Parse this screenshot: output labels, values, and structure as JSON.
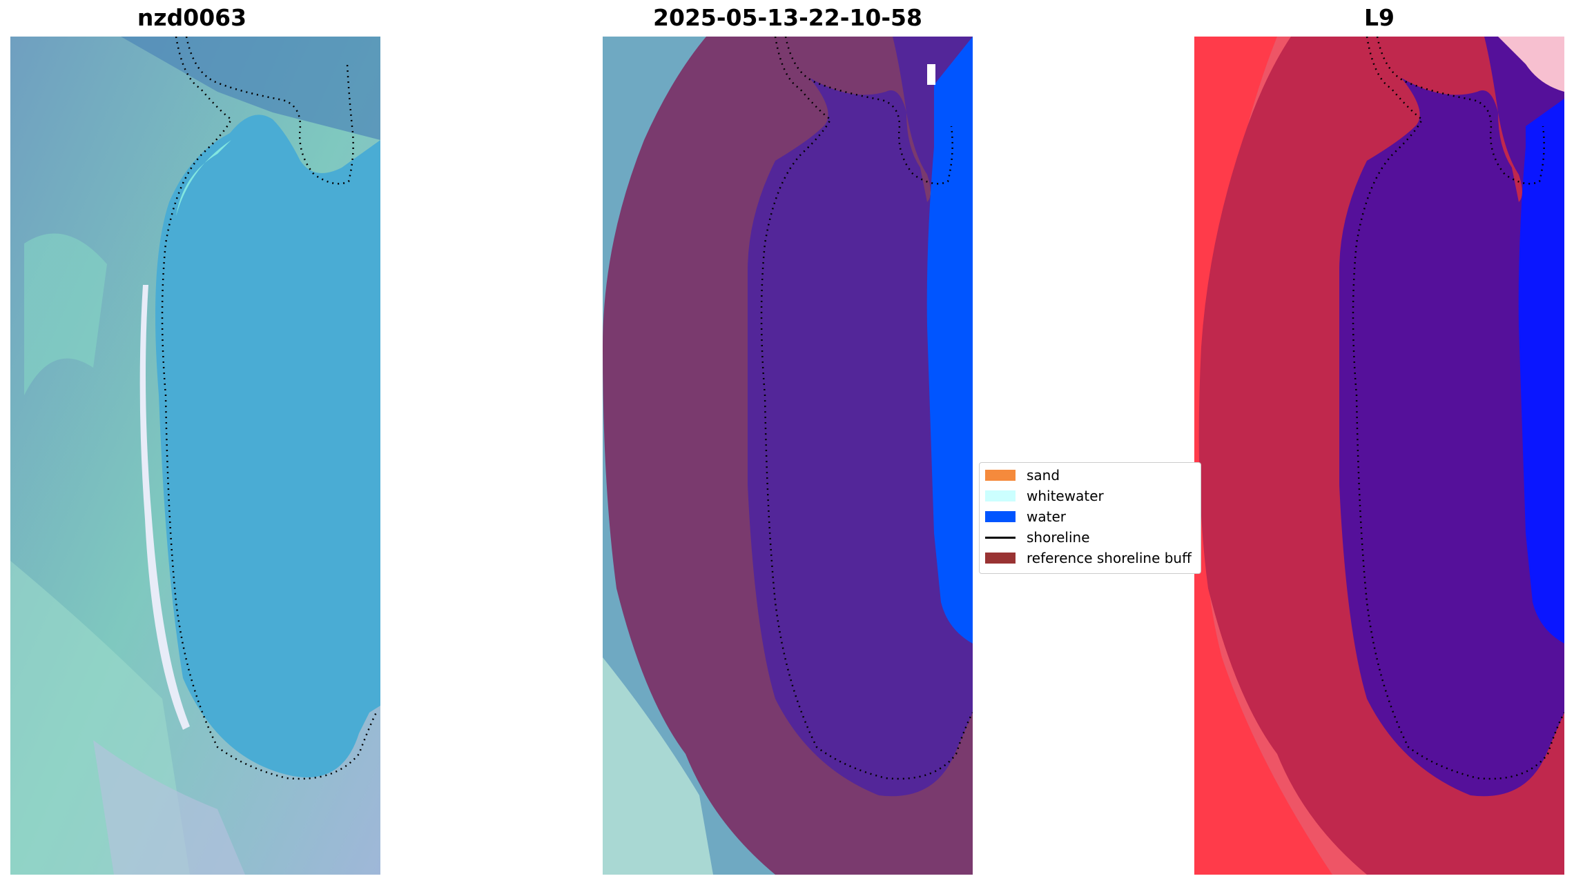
{
  "panels": {
    "left_title": "nzd0063",
    "middle_title": "2025-05-13-22-10-58",
    "right_title": "L9"
  },
  "legend": {
    "items": [
      {
        "label": "sand",
        "color": "#f58a3c",
        "kind": "patch"
      },
      {
        "label": "whitewater",
        "color": "#ccffff",
        "kind": "patch"
      },
      {
        "label": "water",
        "color": "#0055ff",
        "kind": "patch"
      },
      {
        "label": "shoreline",
        "color": "#000000",
        "kind": "line"
      },
      {
        "label": "reference shoreline buff",
        "color": "#993333",
        "kind": "patch"
      }
    ]
  },
  "colors": {
    "rgb_water": "#4aa8d0",
    "rgb_land": "#6aa8b8",
    "class_buffer": "#7a3a6e",
    "class_water_inner": "#532699",
    "class_ocean": "#0055ff",
    "index_land": "#c0284d",
    "index_water": "#55109a",
    "index_ocean": "#0a16ff"
  }
}
